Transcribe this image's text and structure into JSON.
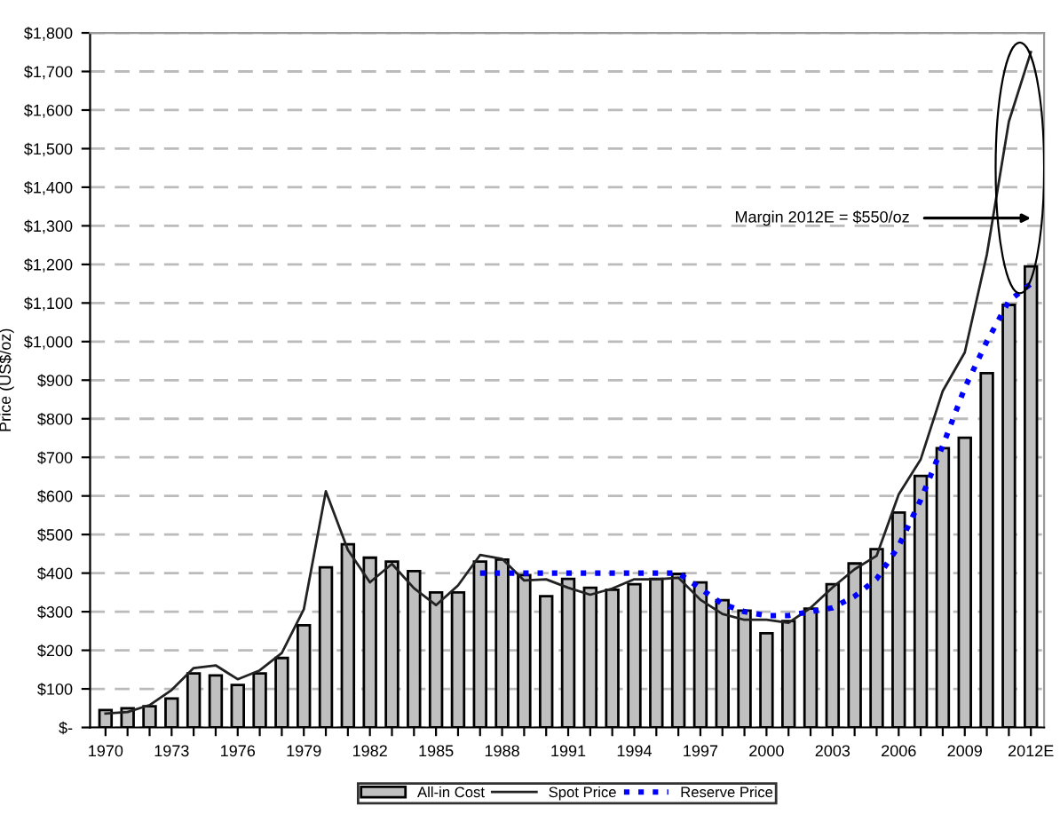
{
  "chart_data": {
    "type": "bar",
    "ylabel": "Price (US$/oz)",
    "categories": [
      "1970",
      null,
      null,
      "1973",
      null,
      null,
      "1976",
      null,
      null,
      "1979",
      null,
      null,
      "1982",
      null,
      null,
      "1985",
      null,
      null,
      "1988",
      null,
      null,
      "1991",
      null,
      null,
      "1994",
      null,
      null,
      "1997",
      null,
      null,
      "2000",
      null,
      null,
      "2003",
      null,
      null,
      "2006",
      null,
      null,
      "2009",
      null,
      null,
      "2012E"
    ],
    "series": [
      {
        "name": "All-in Cost",
        "color": "#c0c0c0",
        "values": [
          45,
          50,
          55,
          75,
          140,
          135,
          110,
          140,
          180,
          265,
          415,
          475,
          440,
          430,
          405,
          350,
          350,
          430,
          435,
          395,
          340,
          385,
          362,
          357,
          371,
          385,
          398,
          376,
          330,
          303,
          244,
          276,
          308,
          371,
          425,
          462,
          557,
          652,
          724,
          751,
          918,
          1095,
          1195
        ]
      },
      {
        "name": "Spot Price",
        "type": "line",
        "color": "#222222",
        "line_style": "solid",
        "values": [
          36,
          40,
          58,
          97,
          154,
          161,
          125,
          148,
          193,
          306,
          612,
          460,
          376,
          424,
          361,
          317,
          368,
          447,
          437,
          381,
          384,
          362,
          344,
          360,
          384,
          384,
          388,
          331,
          294,
          279,
          279,
          271,
          310,
          363,
          410,
          445,
          604,
          695,
          872,
          972,
          1225,
          1570,
          1750
        ]
      },
      {
        "name": "Reserve Price",
        "type": "line",
        "color": "#0000ff",
        "line_style": "dotted",
        "values": [
          null,
          null,
          null,
          null,
          null,
          null,
          null,
          null,
          null,
          null,
          null,
          null,
          null,
          null,
          null,
          null,
          null,
          400,
          400,
          400,
          400,
          400,
          400,
          400,
          400,
          400,
          400,
          360,
          320,
          300,
          290,
          290,
          300,
          310,
          340,
          385,
          470,
          590,
          730,
          880,
          1000,
          1105,
          1150
        ]
      }
    ],
    "ylim": [
      0,
      1800
    ],
    "yticks": [
      {
        "value": 0,
        "label": "$-"
      },
      {
        "value": 100,
        "label": "$100"
      },
      {
        "value": 200,
        "label": "$200"
      },
      {
        "value": 300,
        "label": "$300"
      },
      {
        "value": 400,
        "label": "$400"
      },
      {
        "value": 500,
        "label": "$500"
      },
      {
        "value": 600,
        "label": "$600"
      },
      {
        "value": 700,
        "label": "$700"
      },
      {
        "value": 800,
        "label": "$800"
      },
      {
        "value": 900,
        "label": "$900"
      },
      {
        "value": 1000,
        "label": "$1,000"
      },
      {
        "value": 1100,
        "label": "$1,100"
      },
      {
        "value": 1200,
        "label": "$1,200"
      },
      {
        "value": 1300,
        "label": "$1,300"
      },
      {
        "value": 1400,
        "label": "$1,400"
      },
      {
        "value": 1500,
        "label": "$1,500"
      },
      {
        "value": 1600,
        "label": "$1,600"
      },
      {
        "value": 1700,
        "label": "$1,700"
      },
      {
        "value": 1800,
        "label": "$1,800"
      }
    ],
    "grid": "y",
    "legend": "bottom",
    "annotations": [
      "Margin 2012E = $550/oz"
    ]
  }
}
